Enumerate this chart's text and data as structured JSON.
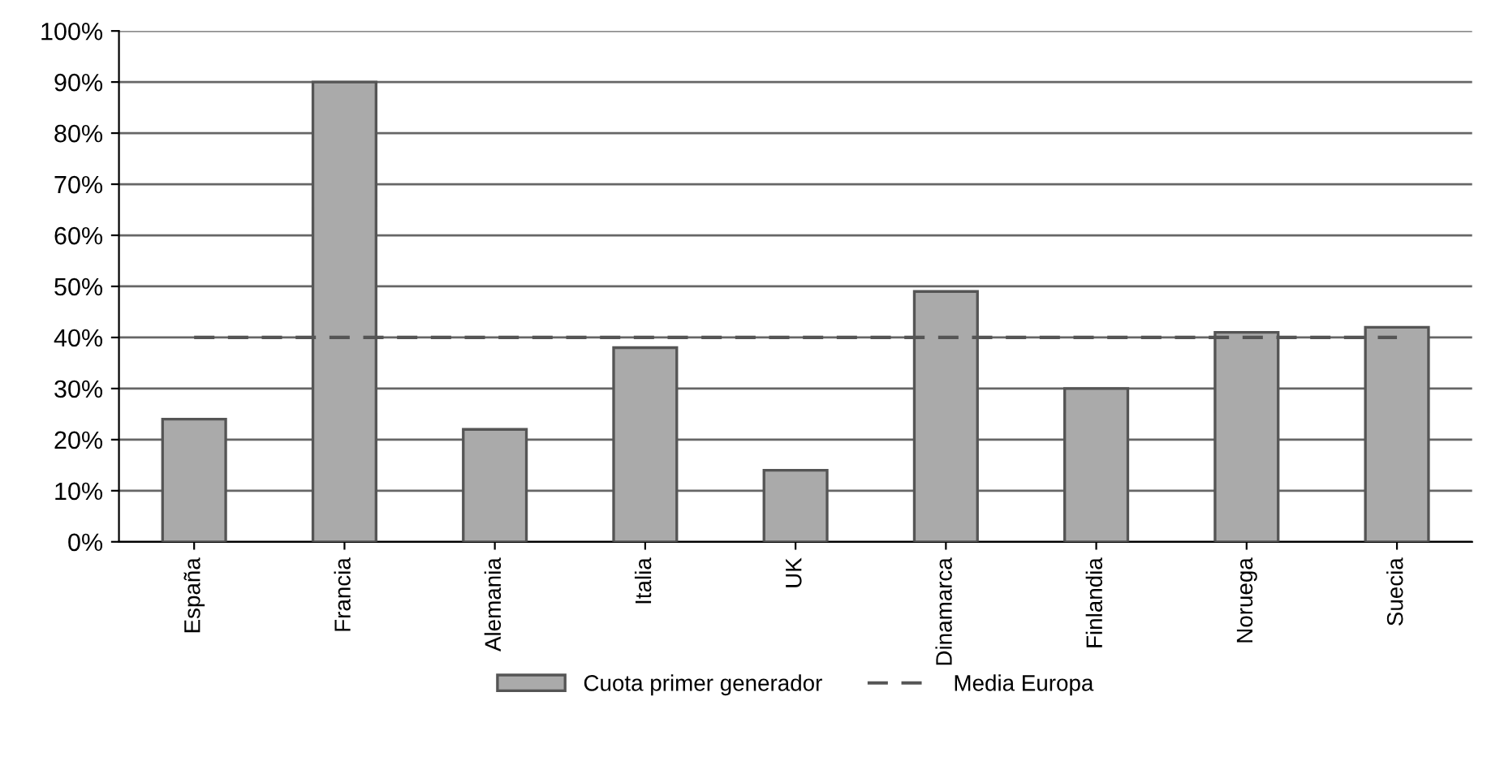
{
  "chart_data": {
    "type": "bar",
    "categories": [
      "España",
      "Francia",
      "Alemania",
      "Italia",
      "UK",
      "Dinamarca",
      "Finlandia",
      "Noruega",
      "Suecia"
    ],
    "series": [
      {
        "name": "Cuota primer generador",
        "color": "#aaaaaa",
        "values": [
          24,
          90,
          22,
          38,
          14,
          49,
          30,
          41,
          42
        ]
      },
      {
        "name": "Media Europa",
        "type": "line",
        "color": "#555555",
        "line_style": "dashed",
        "values": [
          40,
          40,
          40,
          40,
          40,
          40,
          40,
          40,
          40
        ]
      }
    ],
    "ylim": [
      0,
      100
    ],
    "yticks": [
      {
        "value": 0,
        "label": "0%"
      },
      {
        "value": 10,
        "label": "10%"
      },
      {
        "value": 20,
        "label": "20%"
      },
      {
        "value": 30,
        "label": "30%"
      },
      {
        "value": 40,
        "label": "40%"
      },
      {
        "value": 50,
        "label": "50%"
      },
      {
        "value": 60,
        "label": "60%"
      },
      {
        "value": 70,
        "label": "70%"
      },
      {
        "value": 80,
        "label": "80%"
      },
      {
        "value": 90,
        "label": "90%"
      },
      {
        "value": 100,
        "label": "100%"
      }
    ],
    "grid": "y",
    "legend": "bottom"
  }
}
